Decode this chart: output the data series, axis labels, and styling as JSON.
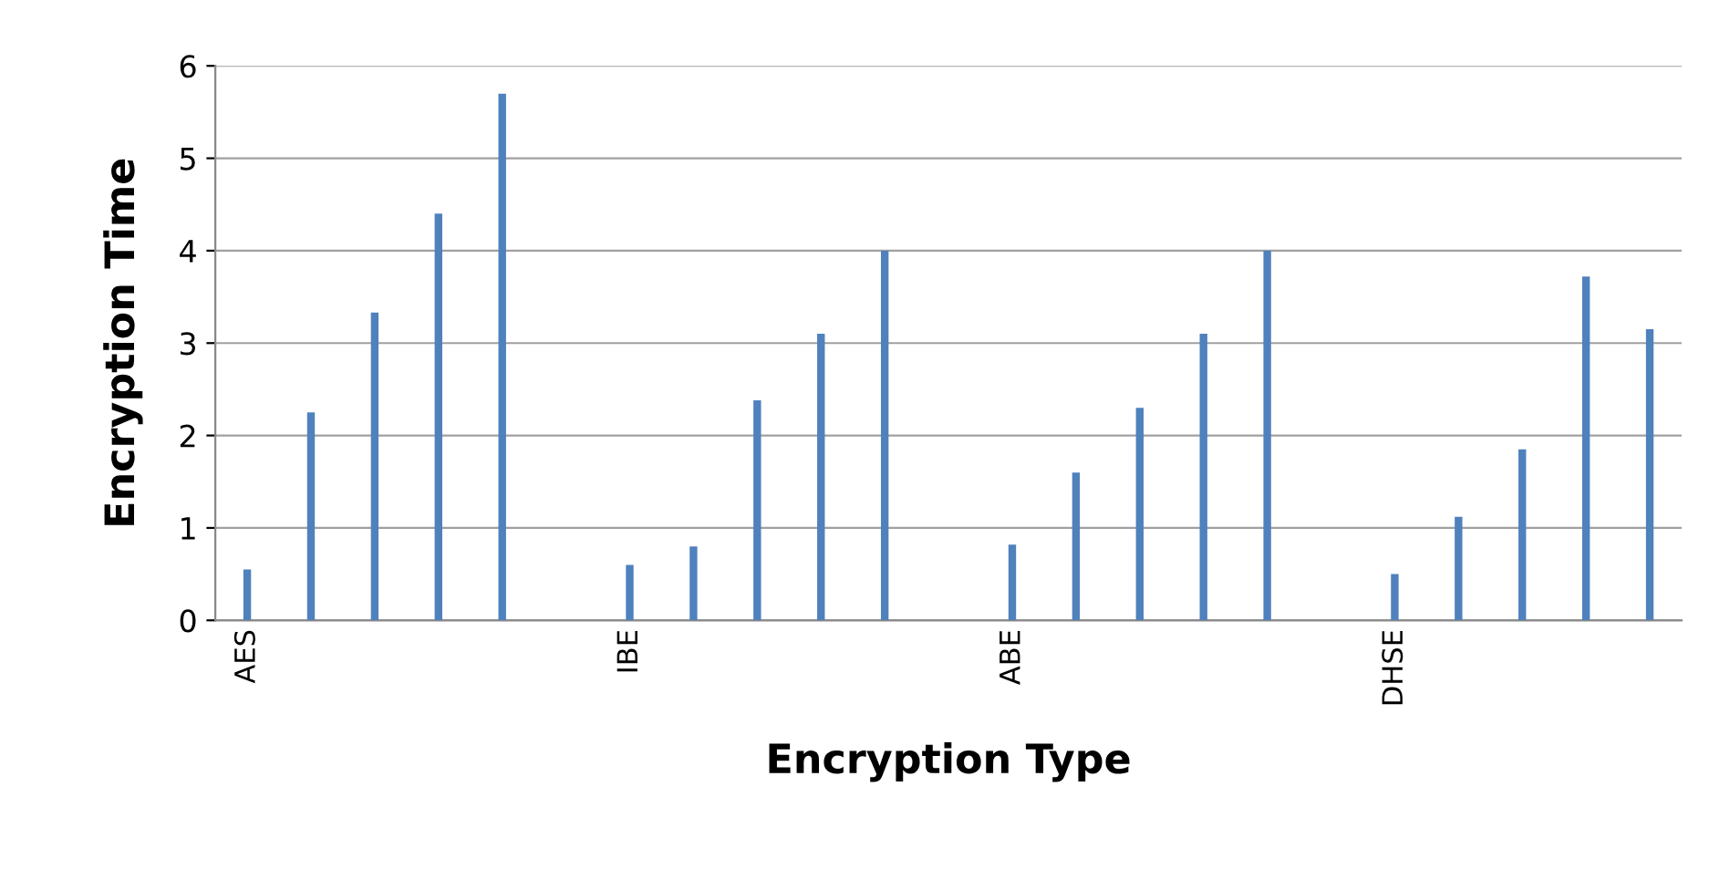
{
  "chart_data": {
    "type": "bar",
    "xlabel": "Encryption Type",
    "ylabel": "Encryption Time",
    "categories": [
      "AES",
      null,
      null,
      null,
      null,
      null,
      "IBE",
      null,
      null,
      null,
      null,
      null,
      "ABE",
      null,
      null,
      null,
      null,
      null,
      "DHSE",
      null,
      null,
      null,
      null
    ],
    "values": [
      0.55,
      2.25,
      3.33,
      4.4,
      5.7,
      null,
      0.6,
      0.8,
      2.38,
      3.1,
      4.0,
      null,
      0.82,
      1.6,
      2.3,
      3.1,
      4.0,
      null,
      0.5,
      1.12,
      1.85,
      3.72,
      3.15
    ],
    "color": "#4f81bd",
    "ylim": [
      0,
      6
    ],
    "yticks": [
      0,
      1,
      2,
      3,
      4,
      5,
      6
    ],
    "grid": "y",
    "legend": false
  }
}
